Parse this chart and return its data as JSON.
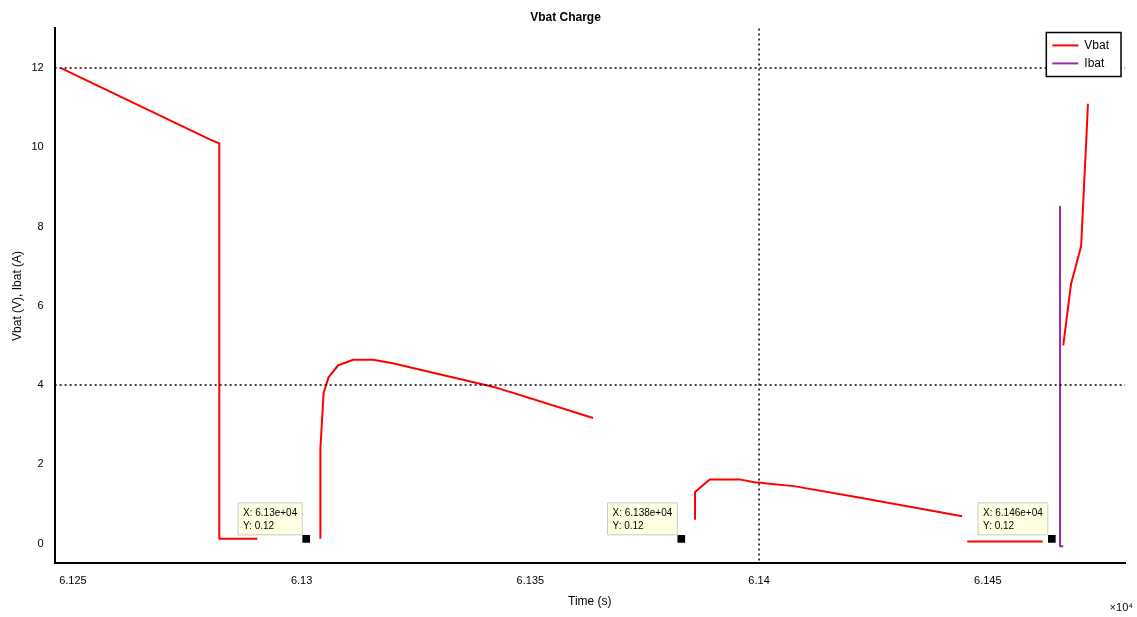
{
  "chart_data": {
    "type": "line",
    "title": "Vbat Charge",
    "xlabel": "Time (s)",
    "ylabel": "Vbat (V), Ibat (A)",
    "xlim": [
      6.1246,
      6.148
    ],
    "xticks": [
      6.125,
      6.13,
      6.135,
      6.14,
      6.145
    ],
    "ylim": [
      -0.5,
      13
    ],
    "yticks": [
      0,
      2,
      4,
      6,
      8,
      10,
      12
    ],
    "grid": false,
    "legend": "top right",
    "line_style": "solid",
    "series": [
      {
        "name": "Vbat",
        "color": "#ff0000",
        "x": [
          6.12474,
          6.12799,
          6.1282,
          6.1282,
          6.12903
        ],
        "values": [
          12,
          10.2,
          10.1,
          0.12,
          0.12
        ]
      },
      {
        "color": "#ff0000",
        "x": [
          6.13041,
          6.13041,
          6.13048,
          6.13059,
          6.1308,
          6.13113,
          6.13156,
          6.13199,
          6.13427,
          6.13637
        ],
        "values": [
          0.12,
          2.4,
          3.8,
          4.2,
          4.5,
          4.64,
          4.64,
          4.55,
          3.93,
          3.17
        ]
      },
      {
        "color": "#ff0000",
        "x": [
          6.1386,
          6.1386,
          6.13892,
          6.13957,
          6.1399,
          6.14076,
          6.14206,
          6.14444
        ],
        "values": [
          0.6,
          1.3,
          1.62,
          1.62,
          1.55,
          1.45,
          1.19,
          0.69
        ]
      },
      {
        "color": "#ff0000",
        "x": [
          6.14455,
          6.1462
        ],
        "values": [
          0.05,
          0.05
        ]
      },
      {
        "color": "#ff0000",
        "x": [
          6.14665,
          6.14682,
          6.14704,
          6.14715,
          6.14719
        ],
        "values": [
          5.0,
          6.55,
          7.5,
          10.1,
          11.1
        ]
      },
      {
        "name": "Ibat",
        "color": "#9b2aa8",
        "x": [
          6.14658,
          6.14658,
          6.14665
        ],
        "values": [
          8.5,
          -0.07,
          -0.07
        ]
      },
      {
        "type": "scatter",
        "marker": "square",
        "color": "#000000",
        "x": [
          6.1301,
          6.1383,
          6.1464
        ],
        "values": [
          0.12,
          0.12,
          0.12
        ]
      }
    ],
    "ref_lines": [
      {
        "axis": "y",
        "value": 12,
        "color": "#000000",
        "line_style": "dotted"
      },
      {
        "axis": "y",
        "value": 4,
        "color": "#000000",
        "line_style": "dotted"
      },
      {
        "axis": "x",
        "value": 6.14,
        "color": "#000000",
        "line_style": "dotted"
      }
    ],
    "annotations": [
      {
        "text": "X: 6.13e+04\nY: 0.12",
        "x": 6.1301,
        "y": 0.12
      },
      {
        "text": "X: 6.138e+04\nY: 0.12",
        "x": 6.1383,
        "y": 0.12
      },
      {
        "text": "X: 6.146e+04\nY: 0.12",
        "x": 6.1464,
        "y": 0.12
      },
      "×10⁴"
    ]
  }
}
